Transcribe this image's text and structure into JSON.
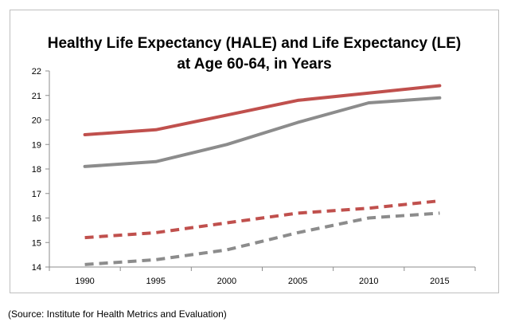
{
  "title_line1": "Healthy Life Expectancy (HALE) and Life Expectancy (LE)",
  "title_line2": "at Age 60-64, in Years",
  "source": "(Source: Institute for Health Metrics and Evaluation)",
  "chart_data": {
    "type": "line",
    "title": "Healthy Life Expectancy (HALE) and Life Expectancy (LE) at Age 60-64, in Years",
    "x": [
      1990,
      1995,
      2000,
      2005,
      2010,
      2015
    ],
    "x_tick_labels": [
      "1990",
      "1995",
      "2000",
      "2005",
      "2010",
      "2015"
    ],
    "ylim": [
      14,
      22
    ],
    "y_ticks": [
      14,
      15,
      16,
      17,
      18,
      19,
      20,
      21,
      22
    ],
    "grid": false,
    "legend": "none",
    "series": [
      {
        "style": "solid",
        "color": "#c0504d",
        "values": [
          19.4,
          19.6,
          20.2,
          20.8,
          21.1,
          21.4
        ]
      },
      {
        "style": "solid",
        "color": "#8c8c8c",
        "values": [
          18.1,
          18.3,
          19.0,
          19.9,
          20.7,
          20.9
        ]
      },
      {
        "style": "dashed",
        "color": "#c0504d",
        "values": [
          15.2,
          15.4,
          15.8,
          16.2,
          16.4,
          16.7
        ]
      },
      {
        "style": "dashed",
        "color": "#8c8c8c",
        "values": [
          14.1,
          14.3,
          14.7,
          15.4,
          16.0,
          16.2
        ]
      }
    ]
  }
}
